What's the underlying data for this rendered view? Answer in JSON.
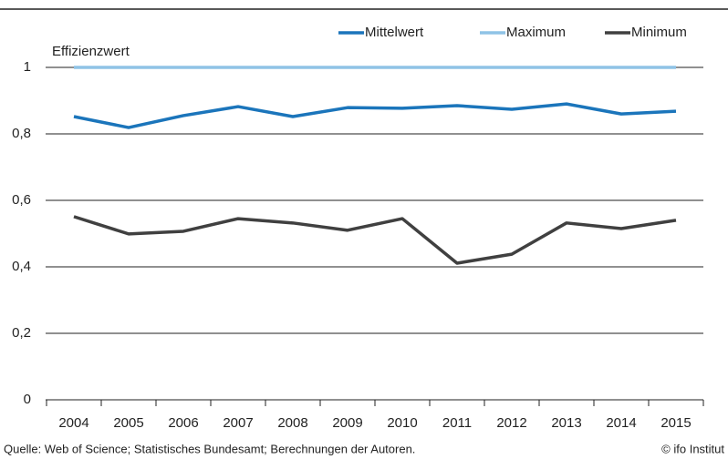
{
  "chart_data": {
    "type": "line",
    "y_label": "Effizienzwert",
    "categories": [
      "2004",
      "2005",
      "2006",
      "2007",
      "2008",
      "2009",
      "2010",
      "2011",
      "2012",
      "2013",
      "2014",
      "2015"
    ],
    "series": [
      {
        "name": "Mittelwert",
        "color": "#1b75bb",
        "values": [
          0.852,
          0.819,
          0.855,
          0.882,
          0.852,
          0.879,
          0.877,
          0.885,
          0.874,
          0.89,
          0.86,
          0.868
        ]
      },
      {
        "name": "Maximum",
        "color": "#8fc3e6",
        "values": [
          1,
          1,
          1,
          1,
          1,
          1,
          1,
          1,
          1,
          1,
          1,
          1
        ]
      },
      {
        "name": "Minimum",
        "color": "#404040",
        "values": [
          0.551,
          0.499,
          0.507,
          0.545,
          0.532,
          0.51,
          0.545,
          0.411,
          0.438,
          0.532,
          0.515,
          0.54
        ]
      }
    ],
    "ylim": [
      0,
      1
    ],
    "yticks": [
      0,
      {
        "value": 0.2,
        "label": "0,2"
      },
      {
        "value": 0.4,
        "label": "0,4"
      },
      {
        "value": 0.6,
        "label": "0,6"
      },
      {
        "value": 0.8,
        "label": "0,8"
      },
      1
    ],
    "grid": true,
    "legend": "top-right",
    "source": "Quelle: Web of Science; Statistisches Bundesamt; Berechnungen der Autoren.",
    "credit": "© ifo Institut"
  }
}
